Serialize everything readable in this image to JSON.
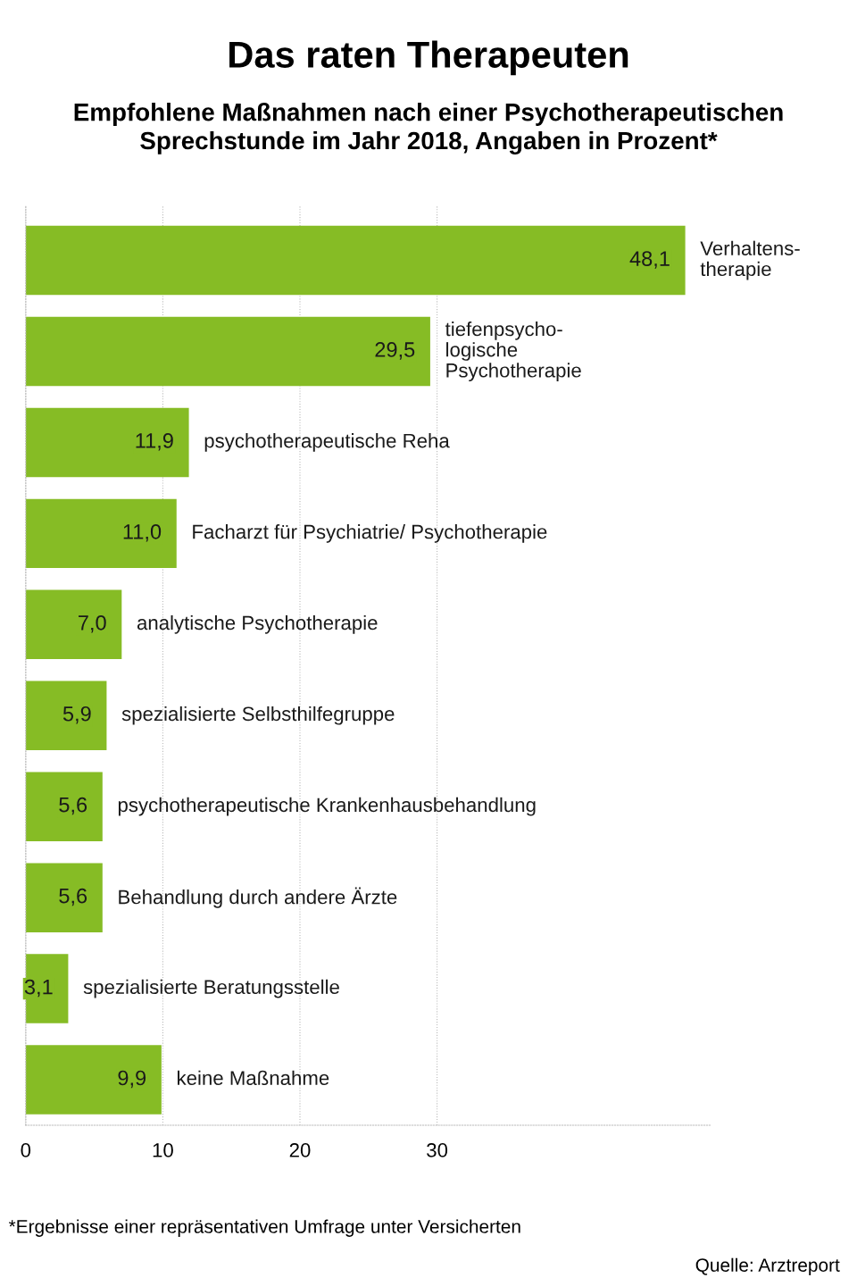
{
  "chart_data": {
    "type": "bar",
    "orientation": "horizontal",
    "title": "Das raten Therapeuten",
    "subtitle": "Empfohlene Maßnahmen nach einer Psychotherapeutischen\nSprechstunde im Jahr 2018, Angaben in Prozent*",
    "categories": [
      "Verhaltens-\ntherapie",
      "tiefenpsycho-\nlogische\nPsychotherapie",
      "psychotherapeutische Reha",
      "Facharzt für Psychiatrie/ Psychotherapie",
      "analytische Psychotherapie",
      "spezialisierte Selbsthilfegruppe",
      "psychotherapeutische Krankenhausbehandlung",
      "Behandlung durch andere Ärzte",
      "spezialisierte Beratungsstelle",
      "keine Maßnahme"
    ],
    "values": [
      48.1,
      29.5,
      11.9,
      11.0,
      7.0,
      5.9,
      5.6,
      5.6,
      3.1,
      9.9
    ],
    "value_labels": [
      "48,1",
      "29,5",
      "11,9",
      "11,0",
      "7,0",
      "5,9",
      "5,6",
      "5,6",
      "3,1",
      "9,9"
    ],
    "color": "#86bc25",
    "xlim": [
      0,
      50
    ],
    "xticks": [
      0,
      10,
      20,
      30
    ],
    "grid": "x",
    "annotations": [
      "*Ergebnisse einer repräsentativen Umfrage unter Versicherten",
      "Quelle: Arztreport"
    ]
  }
}
